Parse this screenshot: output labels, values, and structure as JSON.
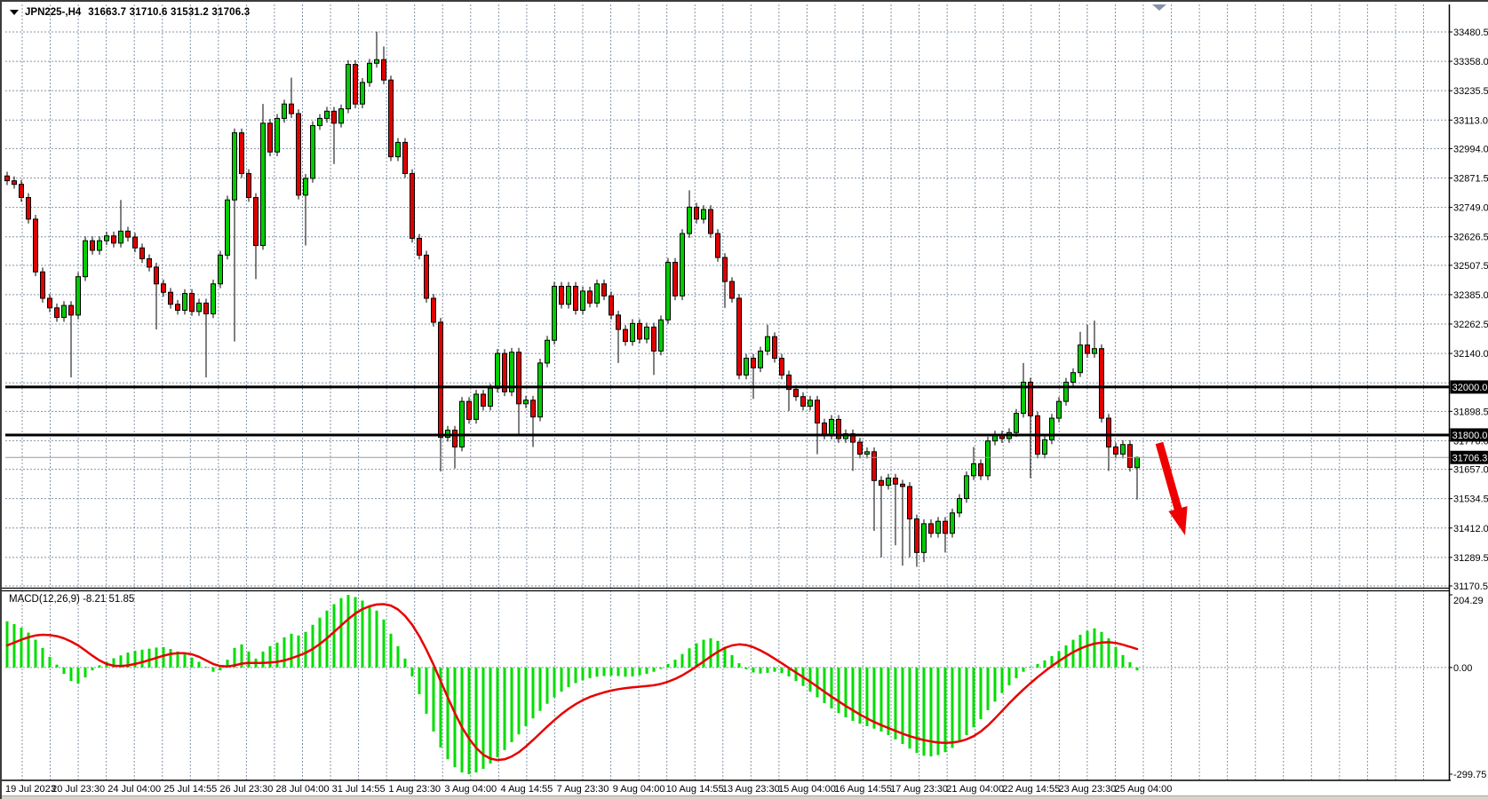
{
  "window": {
    "title": "JPN225-,H4 chart window"
  },
  "header": {
    "dropdown_icon": "triangle-down",
    "symbol": "JPN225-,H4",
    "ohlc_text": "31663.7 31710.6 31531.2 31706.3"
  },
  "colors": {
    "background": "#ffffff",
    "grid": "#8494a6",
    "bull_candle": "#00cc00",
    "bear_candle": "#e00000",
    "wick": "#000000",
    "macd_histogram": "#00dd00",
    "macd_signal": "#e80000",
    "level_line": "#000000",
    "current_price_line": "#9a9a9a",
    "badge_bg": "#000000",
    "badge_text": "#ffffff",
    "axis_text": "#000000",
    "arrow": "#ee0000",
    "shift_marker": "#8494a6"
  },
  "price_axis": {
    "ticks": [
      "33480.5",
      "33358.0",
      "33235.5",
      "33113.0",
      "32994.0",
      "32871.5",
      "32749.0",
      "32626.5",
      "32507.5",
      "32385.0",
      "32262.5",
      "32140.0",
      "31898.5",
      "31776.0",
      "31657.0",
      "31534.5",
      "31412.0",
      "31289.5",
      "31170.5"
    ],
    "hidden_tick_value": 32017.5
  },
  "levels": {
    "resistance": {
      "value": 32000.0,
      "label": "32000.0"
    },
    "support": {
      "value": 31800.0,
      "label": "31800.0"
    },
    "current_price": {
      "value": 31706.3,
      "label": "31706.3"
    }
  },
  "macd_panel": {
    "label": "MACD(12,26,9) -8.21 51.85",
    "ticks": [
      {
        "label": "204.29",
        "value": 204.29
      },
      {
        "label": "0.00",
        "value": 0.0
      },
      {
        "label": "-299.75",
        "value": -299.75
      }
    ]
  },
  "time_axis": {
    "labels": [
      "19 Jul 2023",
      "20 Jul 23:30",
      "24 Jul 04:00",
      "25 Jul 14:55",
      "26 Jul 23:30",
      "28 Jul 04:00",
      "31 Jul 14:55",
      "1 Aug 23:30",
      "3 Aug 04:00",
      "4 Aug 14:55",
      "7 Aug 23:30",
      "9 Aug 04:00",
      "10 Aug 14:55",
      "13 Aug 23:30",
      "15 Aug 04:00",
      "16 Aug 14:55",
      "17 Aug 23:30",
      "21 Aug 04:00",
      "22 Aug 14:55",
      "23 Aug 23:30",
      "25 Aug 04:00"
    ]
  },
  "annotations": {
    "trend_arrow": {
      "shape": "thick-arrow",
      "direction": "down-right",
      "color": "#ee0000"
    },
    "shift_marker": {
      "shape": "triangle-down"
    }
  },
  "chart_data": {
    "type": "candlestick+macd",
    "symbol": "JPN225-",
    "timeframe": "H4",
    "title": "JPN225-,H4 31663.7 31710.6 31531.2 31706.3",
    "price_panel": {
      "ylim": [
        31170.5,
        33480.5
      ],
      "first_open": 32880,
      "candle_closes": [
        32860,
        32845,
        32790,
        32700,
        32480,
        32370,
        32330,
        32290,
        32340,
        32300,
        32460,
        32610,
        32570,
        32610,
        32630,
        32600,
        32650,
        32625,
        32580,
        32535,
        32500,
        32430,
        32395,
        32345,
        32320,
        32390,
        32315,
        32350,
        32305,
        32430,
        32550,
        32780,
        33060,
        32890,
        32790,
        32590,
        33100,
        32980,
        33120,
        33180,
        33140,
        32800,
        32870,
        33090,
        33120,
        33150,
        33100,
        33160,
        33345,
        33180,
        33270,
        33350,
        33365,
        33280,
        32960,
        33020,
        32890,
        32620,
        32550,
        32370,
        32270,
        31790,
        31820,
        31750,
        31940,
        31865,
        31970,
        31920,
        31995,
        32140,
        31980,
        32145,
        31930,
        31945,
        31875,
        32100,
        32195,
        32420,
        32345,
        32420,
        32320,
        32400,
        32350,
        32430,
        32380,
        32300,
        32240,
        32190,
        32265,
        32200,
        32250,
        32150,
        32280,
        32520,
        32380,
        32640,
        32750,
        32700,
        32740,
        32640,
        32540,
        32440,
        32370,
        32050,
        32120,
        32080,
        32150,
        32210,
        32120,
        32050,
        31990,
        31960,
        31920,
        31945,
        31850,
        31800,
        31865,
        31785,
        31805,
        31770,
        31720,
        31730,
        31610,
        31590,
        31620,
        31595,
        31585,
        31450,
        31310,
        31430,
        31390,
        31440,
        31390,
        31475,
        31535,
        31630,
        31680,
        31630,
        31775,
        31800,
        31785,
        31810,
        31890,
        32020,
        31880,
        31720,
        31780,
        31870,
        31940,
        32020,
        32060,
        32175,
        32140,
        32160,
        31870,
        31750,
        31720,
        31760,
        31665,
        31706.3
      ],
      "wick_highs": {
        "16": 32780,
        "36": 33180,
        "40": 33290,
        "52": 33482,
        "53": 33420,
        "96": 32820,
        "107": 32260,
        "136": 31750,
        "143": 32100,
        "151": 32230,
        "152": 32260,
        "153": 32277,
        "159": 31710.6
      },
      "wick_lows": {
        "9": 32040,
        "21": 32240,
        "28": 32040,
        "32": 32190,
        "35": 32450,
        "42": 32590,
        "46": 32930,
        "61": 31648,
        "63": 31660,
        "72": 31800,
        "74": 31750,
        "86": 32100,
        "91": 32050,
        "101": 32330,
        "105": 31950,
        "110": 31900,
        "114": 31720,
        "119": 31650,
        "122": 31400,
        "123": 31290,
        "125": 31340,
        "126": 31255,
        "127": 31290,
        "128": 31250,
        "129": 31270,
        "132": 31310,
        "144": 31620,
        "155": 31650,
        "159": 31531.2
      },
      "last_candle": {
        "open": 31663.7,
        "high": 31710.6,
        "low": 31531.2,
        "close": 31706.3
      },
      "level_lines": [
        32000.0,
        31800.0
      ],
      "current_price": 31706.3
    },
    "macd": {
      "params": [
        12,
        26,
        9
      ],
      "ylim": [
        -299.75,
        204.29
      ],
      "current_histogram": -8.21,
      "current_signal": 51.85,
      "histogram": [
        130,
        122,
        112,
        98,
        78,
        55,
        30,
        8,
        -18,
        -38,
        -45,
        -28,
        -8,
        6,
        16,
        26,
        34,
        42,
        47,
        50,
        53,
        56,
        57,
        52,
        45,
        37,
        28,
        16,
        2,
        -12,
        -8,
        22,
        55,
        65,
        45,
        25,
        45,
        60,
        70,
        85,
        95,
        90,
        100,
        120,
        140,
        160,
        178,
        195,
        204,
        198,
        188,
        175,
        160,
        135,
        95,
        60,
        25,
        -25,
        -75,
        -130,
        -180,
        -225,
        -258,
        -280,
        -295,
        -300,
        -295,
        -285,
        -270,
        -252,
        -232,
        -210,
        -188,
        -165,
        -143,
        -122,
        -102,
        -84,
        -68,
        -55,
        -44,
        -36,
        -30,
        -26,
        -24,
        -23,
        -24,
        -26,
        -25,
        -22,
        -18,
        -12,
        -4,
        10,
        22,
        38,
        54,
        68,
        78,
        82,
        75,
        58,
        35,
        12,
        -5,
        -14,
        -17,
        -15,
        -12,
        -16,
        -25,
        -38,
        -52,
        -68,
        -84,
        -100,
        -115,
        -128,
        -140,
        -150,
        -158,
        -165,
        -172,
        -180,
        -190,
        -202,
        -215,
        -228,
        -240,
        -248,
        -250,
        -246,
        -238,
        -226,
        -210,
        -190,
        -168,
        -145,
        -120,
        -96,
        -72,
        -50,
        -30,
        -12,
        2,
        10,
        20,
        32,
        46,
        62,
        78,
        92,
        103,
        110,
        100,
        82,
        58,
        35,
        15,
        -8.21
      ],
      "signal": [
        62,
        70,
        78,
        85,
        90,
        92,
        91,
        88,
        82,
        73,
        62,
        48,
        33,
        20,
        10,
        5,
        4,
        6,
        10,
        15,
        21,
        27,
        33,
        38,
        40,
        40,
        37,
        30,
        20,
        10,
        4,
        3,
        6,
        11,
        13,
        13,
        13,
        14,
        16,
        20,
        26,
        33,
        41,
        52,
        66,
        82,
        100,
        118,
        136,
        152,
        164,
        172,
        177,
        178,
        174,
        163,
        145,
        120,
        88,
        50,
        8,
        -38,
        -84,
        -128,
        -168,
        -200,
        -226,
        -245,
        -256,
        -260,
        -258,
        -250,
        -238,
        -222,
        -204,
        -185,
        -166,
        -148,
        -131,
        -116,
        -103,
        -92,
        -83,
        -76,
        -70,
        -65,
        -61,
        -58,
        -56,
        -54,
        -52,
        -50,
        -46,
        -40,
        -32,
        -22,
        -10,
        3,
        17,
        31,
        44,
        55,
        62,
        65,
        63,
        57,
        48,
        37,
        25,
        12,
        -1,
        -14,
        -27,
        -40,
        -54,
        -68,
        -82,
        -95,
        -108,
        -120,
        -132,
        -143,
        -153,
        -162,
        -170,
        -178,
        -186,
        -193,
        -199,
        -204,
        -208,
        -211,
        -212,
        -211,
        -208,
        -202,
        -193,
        -180,
        -163,
        -143,
        -122,
        -101,
        -81,
        -62,
        -44,
        -27,
        -11,
        4,
        18,
        31,
        43,
        53,
        61,
        67,
        70,
        71,
        69,
        64,
        58,
        51.85
      ]
    }
  }
}
